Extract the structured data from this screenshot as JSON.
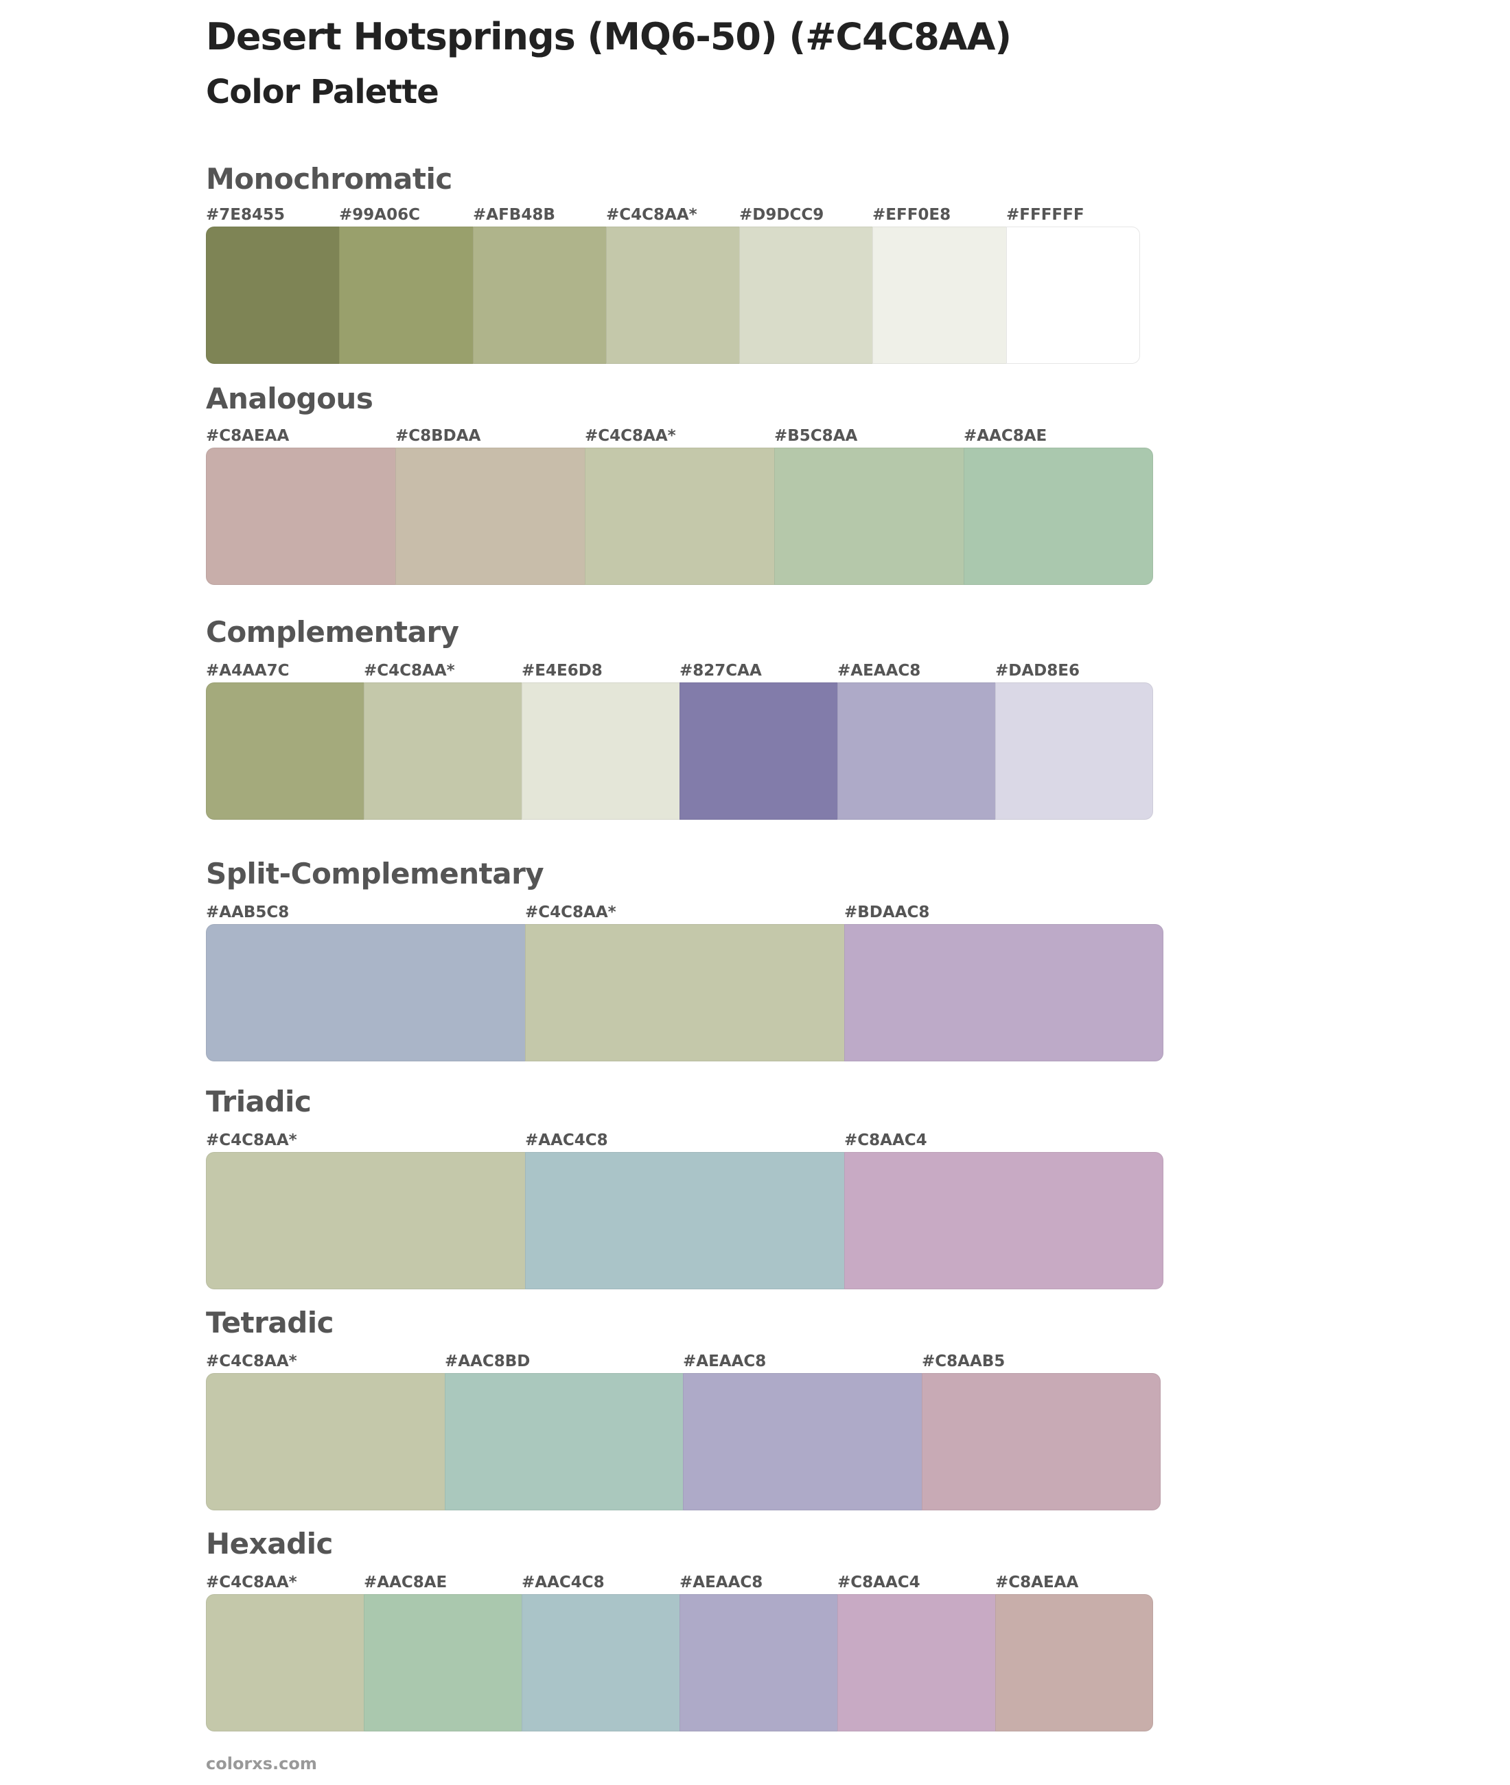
{
  "header": {
    "title": "Desert Hotsprings (MQ6-50) (#C4C8AA)",
    "subtitle": "Color Palette"
  },
  "sections": [
    {
      "title": "Monochromatic",
      "swatches": [
        {
          "label": "#7E8455",
          "color": "#7E8455"
        },
        {
          "label": "#99A06C",
          "color": "#99A06C"
        },
        {
          "label": "#AFB48B",
          "color": "#AFB48B"
        },
        {
          "label": "#C4C8AA*",
          "color": "#C4C8AA"
        },
        {
          "label": "#D9DCC9",
          "color": "#D9DCC9"
        },
        {
          "label": "#EFF0E8",
          "color": "#EFF0E8"
        },
        {
          "label": "#FFFFFF",
          "color": "#FFFFFF"
        }
      ]
    },
    {
      "title": "Analogous",
      "swatches": [
        {
          "label": "#C8AEAA",
          "color": "#C8AEAA"
        },
        {
          "label": "#C8BDAA",
          "color": "#C8BDAA"
        },
        {
          "label": "#C4C8AA*",
          "color": "#C4C8AA"
        },
        {
          "label": "#B5C8AA",
          "color": "#B5C8AA"
        },
        {
          "label": "#AAC8AE",
          "color": "#AAC8AE"
        }
      ]
    },
    {
      "title": "Complementary",
      "swatches": [
        {
          "label": "#A4AA7C",
          "color": "#A4AA7C"
        },
        {
          "label": "#C4C8AA*",
          "color": "#C4C8AA"
        },
        {
          "label": "#E4E6D8",
          "color": "#E4E6D8"
        },
        {
          "label": "#827CAA",
          "color": "#827CAA"
        },
        {
          "label": "#AEAAC8",
          "color": "#AEAAC8"
        },
        {
          "label": "#DAD8E6",
          "color": "#DAD8E6"
        }
      ]
    },
    {
      "title": "Split-Complementary",
      "swatches": [
        {
          "label": "#AAB5C8",
          "color": "#AAB5C8"
        },
        {
          "label": "#C4C8AA*",
          "color": "#C4C8AA"
        },
        {
          "label": "#BDAAC8",
          "color": "#BDAAC8"
        }
      ]
    },
    {
      "title": "Triadic",
      "swatches": [
        {
          "label": "#C4C8AA*",
          "color": "#C4C8AA"
        },
        {
          "label": "#AAC4C8",
          "color": "#AAC4C8"
        },
        {
          "label": "#C8AAC4",
          "color": "#C8AAC4"
        }
      ]
    },
    {
      "title": "Tetradic",
      "swatches": [
        {
          "label": "#C4C8AA*",
          "color": "#C4C8AA"
        },
        {
          "label": "#AAC8BD",
          "color": "#AAC8BD"
        },
        {
          "label": "#AEAAC8",
          "color": "#AEAAC8"
        },
        {
          "label": "#C8AAB5",
          "color": "#C8AAB5"
        }
      ]
    },
    {
      "title": "Hexadic",
      "swatches": [
        {
          "label": "#C4C8AA*",
          "color": "#C4C8AA"
        },
        {
          "label": "#AAC8AE",
          "color": "#AAC8AE"
        },
        {
          "label": "#AAC4C8",
          "color": "#AAC4C8"
        },
        {
          "label": "#AEAAC8",
          "color": "#AEAAC8"
        },
        {
          "label": "#C8AAC4",
          "color": "#C8AAC4"
        },
        {
          "label": "#C8AEAA",
          "color": "#C8AEAA"
        }
      ]
    }
  ],
  "footer": {
    "text": "colorxs.com"
  }
}
